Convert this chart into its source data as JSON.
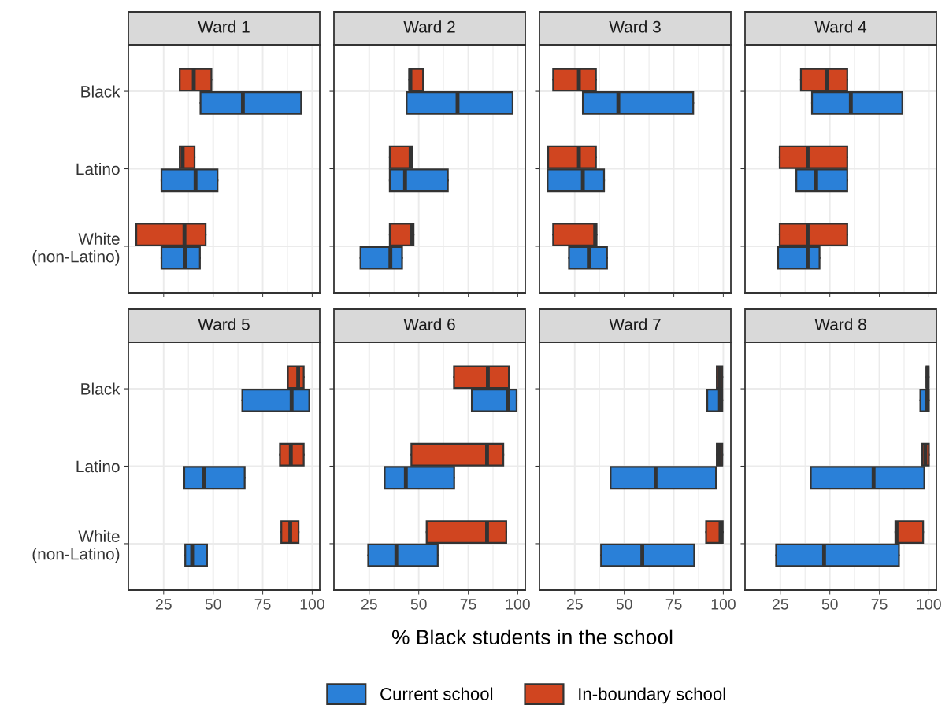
{
  "chart_data": [
    {
      "type": "box",
      "title": "Ward 1",
      "orientation": "horizontal",
      "categories": [
        "Black",
        "Latino",
        "White\n(non-Latino)"
      ],
      "xlim": [
        7.2,
        103.8
      ],
      "xticks": [
        25,
        50,
        75,
        100
      ],
      "grid": true,
      "tick_labels": "y",
      "legend": "bottom",
      "xlabel": "% Black students in the school",
      "series": [
        {
          "name": "Current school",
          "color": "#2a80d8",
          "boxes": [
            {
              "low": 43.6,
              "q1": 43.6,
              "median": 65.0,
              "q3": 94.4,
              "high": 94.4
            },
            {
              "low": 23.9,
              "q1": 23.9,
              "median": 41.1,
              "q3": 52.2,
              "high": 52.2
            },
            {
              "low": 23.9,
              "q1": 23.9,
              "median": 35.9,
              "q3": 43.3,
              "high": 43.3
            }
          ]
        },
        {
          "name": "In-boundary school",
          "color": "#d04520",
          "boxes": [
            {
              "low": 33.1,
              "q1": 33.1,
              "median": 40.2,
              "q3": 49.1,
              "high": 49.1
            },
            {
              "low": 33.1,
              "q1": 33.1,
              "median": 34.6,
              "q3": 40.6,
              "high": 40.6
            },
            {
              "low": 11.2,
              "q1": 11.2,
              "median": 35.5,
              "q3": 46.2,
              "high": 46.2
            }
          ]
        }
      ]
    },
    {
      "type": "box",
      "title": "Ward 2",
      "orientation": "horizontal",
      "categories": [
        null,
        null,
        null
      ],
      "xlim": [
        7.2,
        103.8
      ],
      "xticks": [
        25,
        50,
        75,
        100
      ],
      "grid": true,
      "tick_labels": false,
      "series": [
        {
          "color": "#2a80d8",
          "boxes": [
            {
              "low": 43.9,
              "q1": 43.9,
              "median": 69.6,
              "q3": 97.4,
              "high": 97.4
            },
            {
              "low": 35.4,
              "q1": 35.4,
              "median": 43.1,
              "q3": 64.7,
              "high": 64.7
            },
            {
              "low": 20.6,
              "q1": 20.6,
              "median": 35.7,
              "q3": 41.6,
              "high": 41.6
            }
          ]
        },
        {
          "color": "#d04520",
          "boxes": [
            {
              "low": 45.2,
              "q1": 45.2,
              "median": 45.8,
              "q3": 52.2,
              "high": 52.2
            },
            {
              "low": 35.4,
              "q1": 35.4,
              "median": 45.9,
              "q3": 46.6,
              "high": 46.6
            },
            {
              "low": 35.4,
              "q1": 35.4,
              "median": 46.6,
              "q3": 47.4,
              "high": 47.4
            }
          ]
        }
      ]
    },
    {
      "type": "box",
      "title": "Ward 3",
      "orientation": "horizontal",
      "categories": [
        null,
        null,
        null
      ],
      "xlim": [
        7.2,
        103.8
      ],
      "xticks": [
        25,
        50,
        75,
        100
      ],
      "grid": true,
      "tick_labels": false,
      "series": [
        {
          "color": "#2a80d8",
          "boxes": [
            {
              "low": 29.1,
              "q1": 29.1,
              "median": 47.0,
              "q3": 84.8,
              "high": 84.8
            },
            {
              "low": 11.3,
              "q1": 11.3,
              "median": 29.1,
              "q3": 39.8,
              "high": 39.8
            },
            {
              "low": 22.1,
              "q1": 22.1,
              "median": 32.1,
              "q3": 41.3,
              "high": 41.3
            }
          ]
        },
        {
          "color": "#d04520",
          "boxes": [
            {
              "low": 14.1,
              "q1": 14.1,
              "median": 27.1,
              "q3": 35.7,
              "high": 35.7
            },
            {
              "low": 11.6,
              "q1": 11.6,
              "median": 27.1,
              "q3": 35.7,
              "high": 35.7
            },
            {
              "low": 14.1,
              "q1": 14.1,
              "median": 35.3,
              "q3": 36.0,
              "high": 36.0
            }
          ]
        }
      ]
    },
    {
      "type": "box",
      "title": "Ward 4",
      "orientation": "horizontal",
      "categories": [
        null,
        null,
        null
      ],
      "xlim": [
        7.2,
        103.8
      ],
      "xticks": [
        25,
        50,
        75,
        100
      ],
      "grid": true,
      "tick_labels": false,
      "series": [
        {
          "color": "#2a80d8",
          "boxes": [
            {
              "low": 41.0,
              "q1": 41.0,
              "median": 60.6,
              "q3": 86.6,
              "high": 86.6
            },
            {
              "low": 33.1,
              "q1": 33.1,
              "median": 43.1,
              "q3": 58.8,
              "high": 58.8
            },
            {
              "low": 23.9,
              "q1": 23.9,
              "median": 38.8,
              "q3": 44.8,
              "high": 44.8
            }
          ]
        },
        {
          "color": "#d04520",
          "boxes": [
            {
              "low": 35.4,
              "q1": 35.4,
              "median": 48.7,
              "q3": 58.8,
              "high": 58.8
            },
            {
              "low": 24.7,
              "q1": 24.7,
              "median": 38.8,
              "q3": 58.8,
              "high": 58.8
            },
            {
              "low": 24.7,
              "q1": 24.7,
              "median": 38.8,
              "q3": 58.8,
              "high": 58.8
            }
          ]
        }
      ]
    },
    {
      "type": "box",
      "title": "Ward 5",
      "orientation": "horizontal",
      "categories": [
        "Black",
        "Latino",
        "White\n(non-Latino)"
      ],
      "xlim": [
        7.2,
        103.8
      ],
      "xticks": [
        25,
        50,
        75,
        100
      ],
      "grid": true,
      "series": [
        {
          "color": "#2a80d8",
          "boxes": [
            {
              "low": 64.7,
              "q1": 64.7,
              "median": 89.6,
              "q3": 98.5,
              "high": 98.5
            },
            {
              "low": 35.4,
              "q1": 35.4,
              "median": 45.4,
              "q3": 65.9,
              "high": 65.9
            },
            {
              "low": 35.9,
              "q1": 35.9,
              "median": 39.4,
              "q3": 46.9,
              "high": 46.9
            }
          ]
        },
        {
          "color": "#d04520",
          "boxes": [
            {
              "low": 87.7,
              "q1": 87.7,
              "median": 92.9,
              "q3": 95.7,
              "high": 95.7
            },
            {
              "low": 83.7,
              "q1": 83.7,
              "median": 89.2,
              "q3": 95.7,
              "high": 95.7
            },
            {
              "low": 84.4,
              "q1": 84.4,
              "median": 88.9,
              "q3": 93.1,
              "high": 93.1
            }
          ]
        }
      ]
    },
    {
      "type": "box",
      "title": "Ward 6",
      "orientation": "horizontal",
      "categories": [
        null,
        null,
        null
      ],
      "xlim": [
        7.2,
        103.8
      ],
      "xticks": [
        25,
        50,
        75,
        100
      ],
      "grid": true,
      "tick_labels": "x",
      "series": [
        {
          "color": "#2a80d8",
          "boxes": [
            {
              "low": 76.8,
              "q1": 76.8,
              "median": 95.0,
              "q3": 99.4,
              "high": 99.4
            },
            {
              "low": 32.8,
              "q1": 32.8,
              "median": 43.5,
              "q3": 67.9,
              "high": 67.9
            },
            {
              "low": 24.5,
              "q1": 24.5,
              "median": 38.7,
              "q3": 59.6,
              "high": 59.6
            }
          ]
        },
        {
          "color": "#d04520",
          "boxes": [
            {
              "low": 67.8,
              "q1": 67.8,
              "median": 84.9,
              "q3": 95.5,
              "high": 95.5
            },
            {
              "low": 46.3,
              "q1": 46.3,
              "median": 84.5,
              "q3": 92.7,
              "high": 92.7
            },
            {
              "low": 54.0,
              "q1": 54.0,
              "median": 84.5,
              "q3": 94.2,
              "high": 94.2
            }
          ]
        }
      ]
    },
    {
      "type": "box",
      "title": "Ward 7",
      "orientation": "horizontal",
      "categories": [
        null,
        null,
        null
      ],
      "xlim": [
        7.2,
        103.8
      ],
      "xticks": [
        25,
        50,
        75,
        100
      ],
      "grid": true,
      "tick_labels": "x",
      "series": [
        {
          "color": "#2a80d8",
          "boxes": [
            {
              "low": 91.9,
              "q1": 91.9,
              "median": 98.3,
              "q3": 99.5,
              "high": 99.5
            },
            {
              "low": 43.1,
              "q1": 43.1,
              "median": 65.8,
              "q3": 96.3,
              "high": 96.3
            },
            {
              "low": 38.3,
              "q1": 38.3,
              "median": 59.1,
              "q3": 85.3,
              "high": 85.3
            }
          ]
        },
        {
          "color": "#d04520",
          "boxes": [
            {
              "low": 96.7,
              "q1": 96.7,
              "median": 98.1,
              "q3": 99.5,
              "high": 99.5
            },
            {
              "low": 96.7,
              "q1": 96.7,
              "median": 98.0,
              "q3": 99.5,
              "high": 99.5
            },
            {
              "low": 91.3,
              "q1": 91.3,
              "median": 98.6,
              "q3": 99.7,
              "high": 99.7
            }
          ]
        }
      ]
    },
    {
      "type": "box",
      "title": "Ward 8",
      "orientation": "horizontal",
      "categories": [
        null,
        null,
        null
      ],
      "xlim": [
        7.2,
        103.8
      ],
      "xticks": [
        25,
        50,
        75,
        100
      ],
      "grid": true,
      "tick_labels": "x",
      "series": [
        {
          "color": "#2a80d8",
          "boxes": [
            {
              "low": 95.7,
              "q1": 95.7,
              "median": 99.0,
              "q3": 100,
              "high": 100
            },
            {
              "low": 40.4,
              "q1": 40.4,
              "median": 72.1,
              "q3": 97.7,
              "high": 97.7
            },
            {
              "low": 22.9,
              "q1": 22.9,
              "median": 47.1,
              "q3": 84.9,
              "high": 84.9
            }
          ]
        },
        {
          "color": "#d04520",
          "boxes": [
            {
              "low": 98.8,
              "q1": 98.8,
              "median": 99.3,
              "q3": 99.9,
              "high": 99.9
            },
            {
              "low": 96.7,
              "q1": 96.7,
              "median": 98.2,
              "q3": 100,
              "high": 100
            },
            {
              "low": 83.1,
              "q1": 83.1,
              "median": 83.7,
              "q3": 97.1,
              "high": 97.1
            }
          ]
        }
      ]
    }
  ]
}
